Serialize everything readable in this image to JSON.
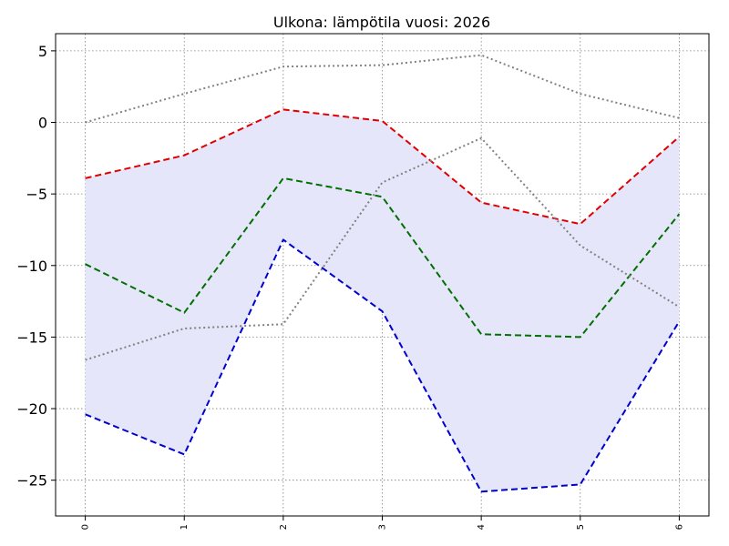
{
  "chart_data": {
    "type": "line",
    "title": "Ulkona: lämpötila vuosi: 2026",
    "xlabel": "",
    "ylabel": "",
    "x": [
      0,
      1,
      2,
      3,
      4,
      5,
      6
    ],
    "x_tick_labels": [
      "0",
      "1",
      "2",
      "3",
      "4",
      "5",
      "6"
    ],
    "y_ticks": [
      5,
      0,
      -5,
      -10,
      -15,
      -20,
      -25
    ],
    "y_tick_labels": [
      "5",
      "0",
      "−5",
      "−10",
      "−15",
      "−20",
      "−25"
    ],
    "xlim": [
      -0.3,
      6.3
    ],
    "ylim": [
      -27.5,
      6.2
    ],
    "grid": true,
    "band": {
      "color": "#e6e6fa",
      "upper": [
        -3.9,
        -2.3,
        0.9,
        0.1,
        -5.6,
        -7.1,
        -1.0
      ],
      "lower": [
        -20.4,
        -23.2,
        -8.2,
        -13.2,
        -25.8,
        -25.3,
        -13.9
      ]
    },
    "series": [
      {
        "color": "#e00000",
        "style": "dashed",
        "values": [
          -3.9,
          -2.3,
          0.9,
          0.1,
          -5.6,
          -7.1,
          -1.0
        ]
      },
      {
        "color": "#007000",
        "style": "dashed",
        "values": [
          -9.9,
          -13.3,
          -3.9,
          -5.2,
          -14.8,
          -15.0,
          -6.4
        ]
      },
      {
        "color": "#0000cc",
        "style": "dashed",
        "values": [
          -20.4,
          -23.2,
          -8.2,
          -13.2,
          -25.8,
          -25.3,
          -13.9
        ]
      },
      {
        "color": "#808080",
        "style": "dotted",
        "values": [
          0.0,
          2.0,
          3.9,
          4.0,
          4.7,
          2.0,
          0.3
        ]
      },
      {
        "color": "#808080",
        "style": "dotted",
        "values": [
          -16.6,
          -14.4,
          -14.1,
          -4.2,
          -1.1,
          -8.6,
          -12.9
        ]
      }
    ]
  }
}
